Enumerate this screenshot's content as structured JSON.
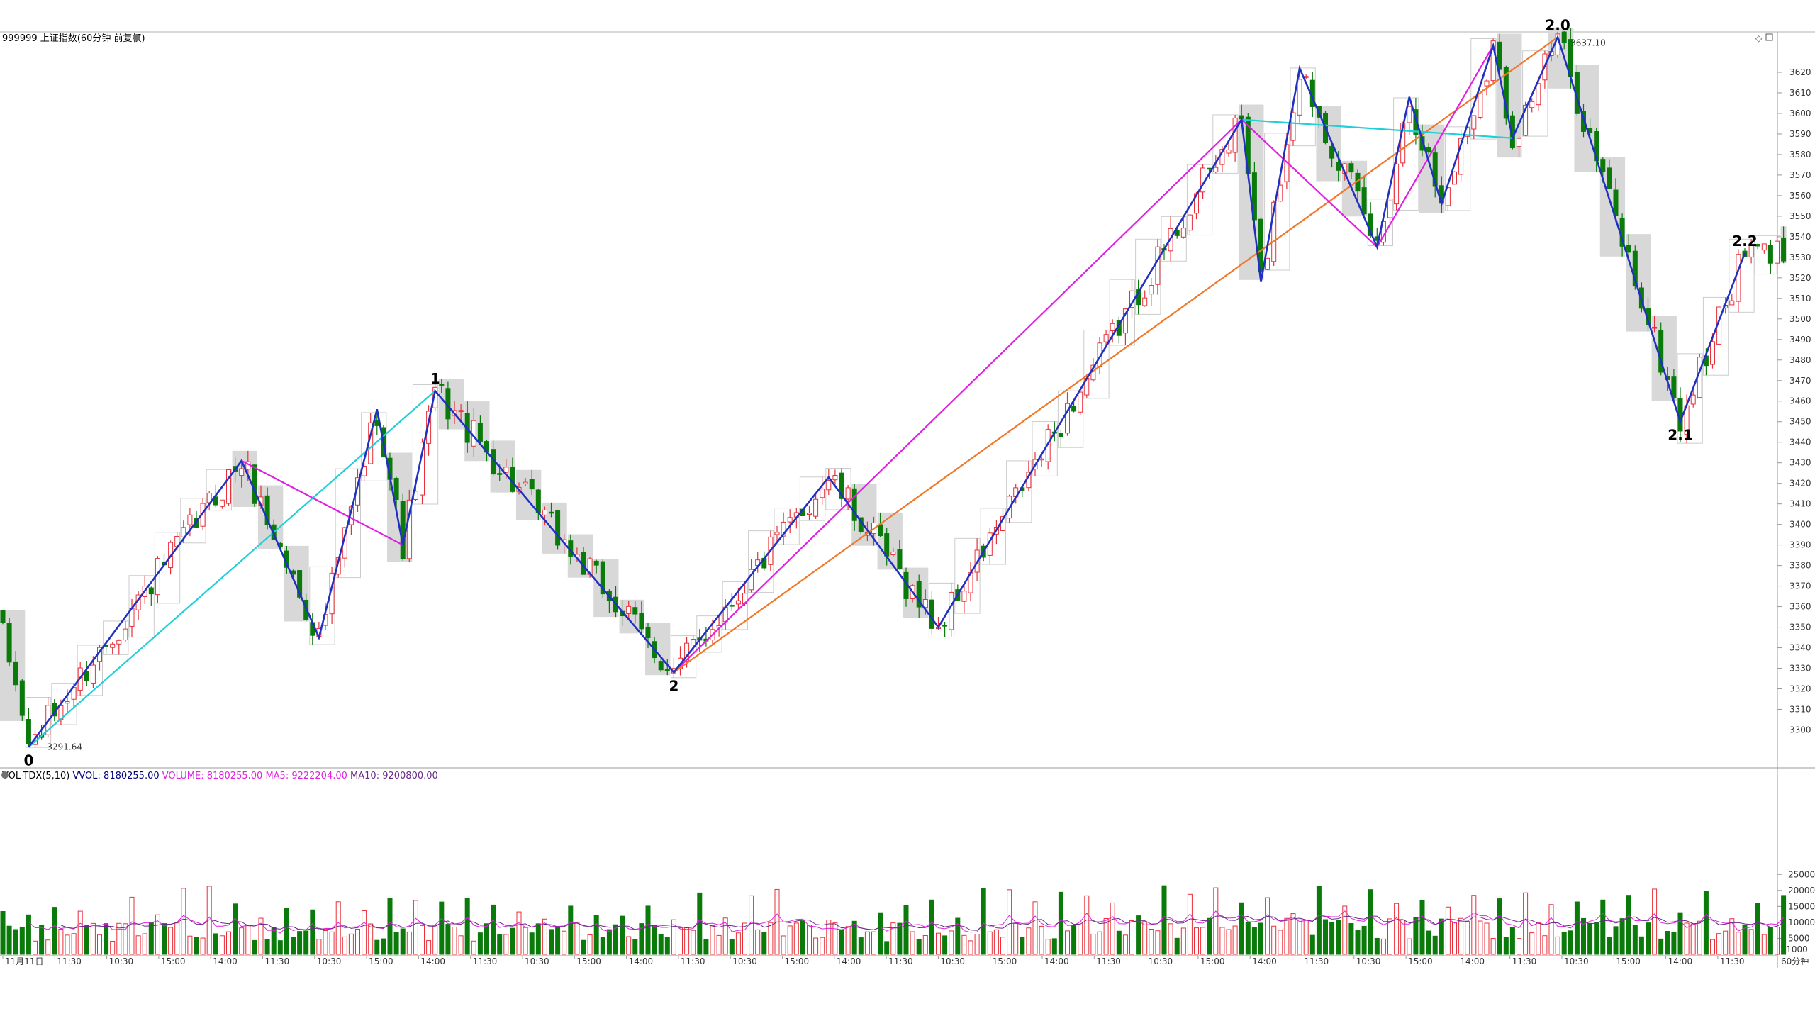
{
  "header": {
    "symbol": "999999",
    "title": "上证指数(60分钟 前复权)"
  },
  "volume_header": {
    "name": "VOL-TDX(5,10)",
    "vvol": "VVOL: 8180255.00",
    "volume": "VOLUME: 8180255.00",
    "ma5": "MA5: 9222204.00",
    "ma10": "MA10: 9200800.00"
  },
  "colors": {
    "up": "#e8303a",
    "down": "#0a7a0a",
    "zigzag": "#2030c0",
    "magenta": "#e020e0",
    "cyan": "#20d0d8",
    "orange": "#f07828",
    "ma5": "#e020e0",
    "ma10": "#6a2a8a",
    "box": "#cccccc"
  },
  "price_axis": {
    "ticks": [
      "3300",
      "3310",
      "3320",
      "3330",
      "3340",
      "3350",
      "3360",
      "3370",
      "3380",
      "3390",
      "3400",
      "3410",
      "3420",
      "3430",
      "3440",
      "3450",
      "3460",
      "3470",
      "3480",
      "3490",
      "3500",
      "3510",
      "3520",
      "3530",
      "3540",
      "3550",
      "3560",
      "3570",
      "3580",
      "3590",
      "3600",
      "3610",
      "3620"
    ]
  },
  "volume_axis": {
    "ticks": [
      "5000",
      "10000",
      "15000",
      "20000",
      "25000"
    ],
    "unit": "X1000"
  },
  "time_axis": {
    "labels": [
      "11月11日",
      "11:30",
      "10:30",
      "15:00",
      "14:00",
      "11:30",
      "10:30",
      "15:00",
      "14:00",
      "11:30",
      "10:30",
      "15:00",
      "14:00",
      "11:30",
      "10:30",
      "15:00",
      "14:00",
      "11:30",
      "10:30",
      "15:00",
      "14:00",
      "11:30",
      "10:30",
      "15:00",
      "14:00",
      "11:30",
      "10:30",
      "15:00",
      "14:00",
      "11:30",
      "10:30",
      "15:00",
      "14:00",
      "11:30"
    ],
    "period": "60分钟"
  },
  "annotations": {
    "low_value": "3291.64",
    "high_value": "3637.10",
    "wave_labels": [
      "0",
      "1",
      "2",
      "2.0",
      "2.1",
      "2.2"
    ]
  },
  "chart_data": {
    "type": "candlestick",
    "interval": "60分钟",
    "price_range": [
      3285,
      3645
    ],
    "volume_range": [
      0,
      26000
    ],
    "pivots": [
      {
        "label": "0",
        "bar": 4,
        "price": 3291.64
      },
      {
        "label": "",
        "bar": 37,
        "price": 3431
      },
      {
        "label": "",
        "bar": 49,
        "price": 3345
      },
      {
        "label": "",
        "bar": 58,
        "price": 3456
      },
      {
        "label": "",
        "bar": 62,
        "price": 3390
      },
      {
        "label": "1",
        "bar": 67,
        "price": 3465
      },
      {
        "label": "2",
        "bar": 104,
        "price": 3328
      },
      {
        "label": "",
        "bar": 128,
        "price": 3423
      },
      {
        "label": "",
        "bar": 145,
        "price": 3350
      },
      {
        "label": "",
        "bar": 192,
        "price": 3597
      },
      {
        "label": "",
        "bar": 195,
        "price": 3518
      },
      {
        "label": "",
        "bar": 201,
        "price": 3622
      },
      {
        "label": "",
        "bar": 213,
        "price": 3535
      },
      {
        "label": "",
        "bar": 218,
        "price": 3608
      },
      {
        "label": "",
        "bar": 223,
        "price": 3556
      },
      {
        "label": "",
        "bar": 231,
        "price": 3633
      },
      {
        "label": "",
        "bar": 234,
        "price": 3588
      },
      {
        "label": "2.0",
        "bar": 241,
        "price": 3637.1
      },
      {
        "label": "2.1",
        "bar": 260,
        "price": 3450
      },
      {
        "label": "2.2",
        "bar": 270,
        "price": 3532
      }
    ],
    "trend_lines": [
      {
        "color": "magenta",
        "from": {
          "bar": 37,
          "price": 3431
        },
        "to": {
          "bar": 62,
          "price": 3390
        }
      },
      {
        "color": "cyan",
        "from": {
          "bar": 4,
          "price": 3291.64
        },
        "to": {
          "bar": 67,
          "price": 3465
        }
      },
      {
        "color": "magenta",
        "from": {
          "bar": 104,
          "price": 3328
        },
        "to": {
          "bar": 192,
          "price": 3597
        }
      },
      {
        "color": "orange",
        "from": {
          "bar": 104,
          "price": 3328
        },
        "to": {
          "bar": 241,
          "price": 3637.1
        }
      },
      {
        "color": "cyan",
        "from": {
          "bar": 192,
          "price": 3597
        },
        "to": {
          "bar": 234,
          "price": 3588
        }
      },
      {
        "color": "magenta",
        "from": {
          "bar": 192,
          "price": 3597
        },
        "to": {
          "bar": 213,
          "price": 3535
        }
      },
      {
        "color": "magenta",
        "from": {
          "bar": 213,
          "price": 3535
        },
        "to": {
          "bar": 231,
          "price": 3633
        }
      }
    ]
  }
}
